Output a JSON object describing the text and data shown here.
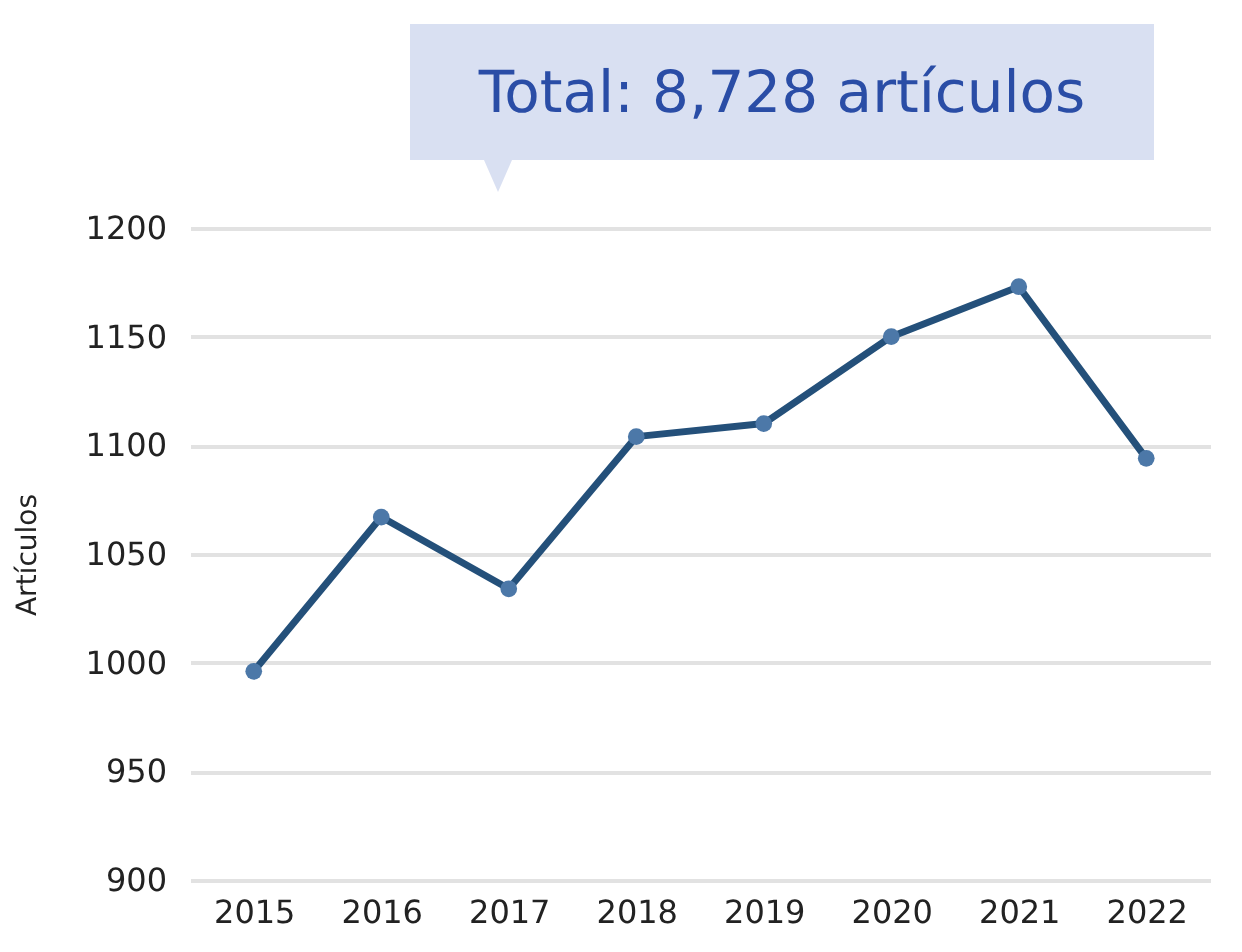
{
  "chart_data": {
    "type": "line",
    "title": "Total: 8,728 artículos",
    "ylabel": "Artículos",
    "categories": [
      "2015",
      "2016",
      "2017",
      "2018",
      "2019",
      "2020",
      "2021",
      "2022"
    ],
    "series": [
      {
        "color": "#24507a",
        "values": [
          996,
          1067,
          1034,
          1104,
          1110,
          1150,
          1173,
          1094
        ]
      }
    ],
    "ylim": [
      900,
      1200
    ],
    "yticks": [
      900,
      950,
      1000,
      1050,
      1100,
      1150,
      1200
    ],
    "grid": "y",
    "marker": "circle",
    "line_style": "solid"
  }
}
